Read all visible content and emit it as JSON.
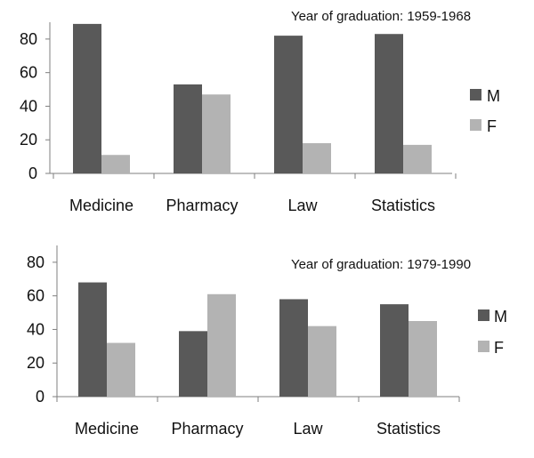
{
  "chart_data": [
    {
      "type": "bar",
      "title": "Year of graduation: 1959-1968",
      "categories": [
        "Medicine",
        "Pharmacy",
        "Law",
        "Statistics"
      ],
      "series": [
        {
          "name": "M",
          "color": "#595959",
          "values": [
            89,
            53,
            82,
            83
          ]
        },
        {
          "name": "F",
          "color": "#b3b3b3",
          "values": [
            11,
            47,
            18,
            17
          ]
        }
      ],
      "ylim": [
        0,
        90
      ],
      "yticks": [
        0,
        20,
        40,
        60,
        80
      ],
      "xlabel": "",
      "ylabel": "",
      "grid": false,
      "legend": "right"
    },
    {
      "type": "bar",
      "title": "Year of graduation: 1979-1990",
      "categories": [
        "Medicine",
        "Pharmacy",
        "Law",
        "Statistics"
      ],
      "series": [
        {
          "name": "M",
          "color": "#595959",
          "values": [
            68,
            39,
            58,
            55
          ]
        },
        {
          "name": "F",
          "color": "#b3b3b3",
          "values": [
            32,
            61,
            42,
            45
          ]
        }
      ],
      "ylim": [
        0,
        90
      ],
      "yticks": [
        0,
        20,
        40,
        60,
        80
      ],
      "xlabel": "",
      "ylabel": "",
      "grid": false,
      "legend": "right"
    }
  ]
}
